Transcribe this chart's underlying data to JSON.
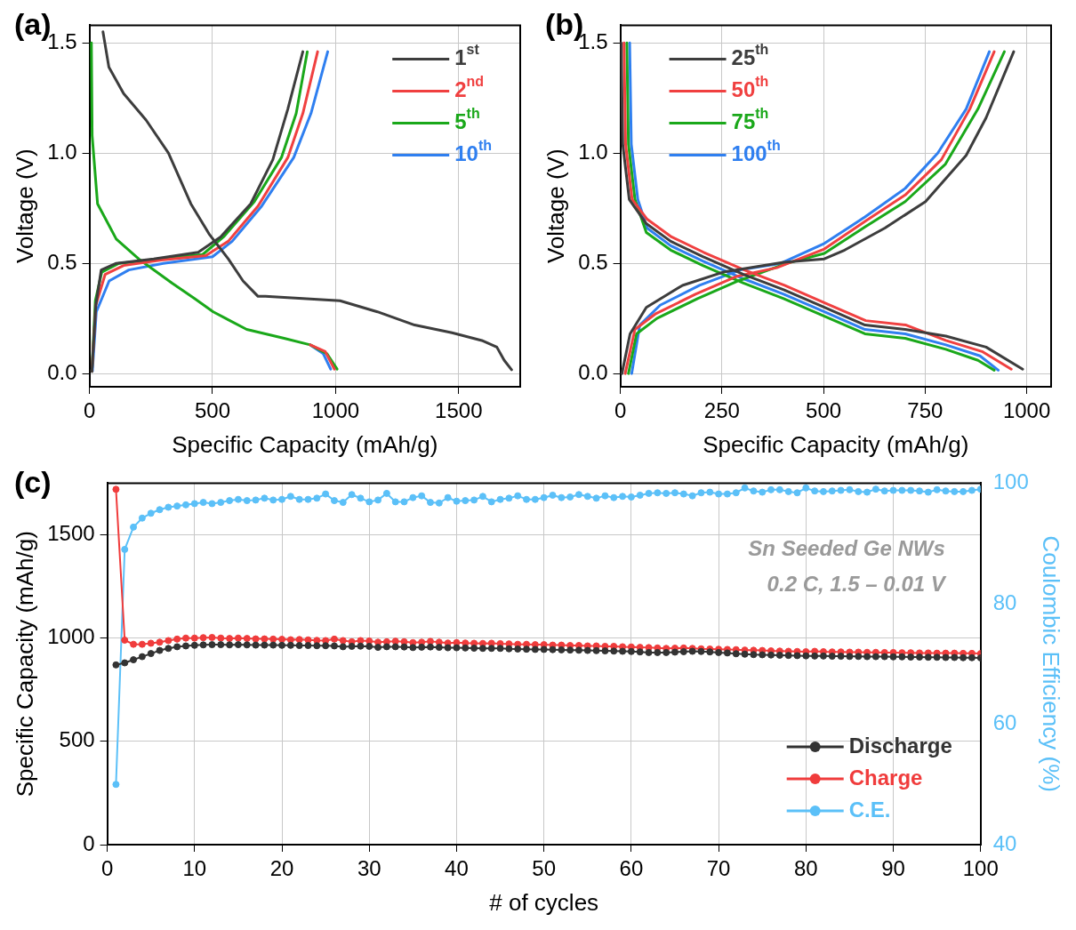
{
  "chart_data": [
    {
      "type": "line",
      "title": "(a)",
      "xlabel": "Specific Capacity (mAh/g)",
      "ylabel": "Voltage (V)",
      "xlim": [
        0,
        1750
      ],
      "xticks": [
        0,
        500,
        1000,
        1500
      ],
      "ylim": [
        -0.06,
        1.58
      ],
      "yticks": [
        {
          "value": 0,
          "label": "0.0"
        },
        {
          "value": 0.5,
          "label": "0.5"
        },
        {
          "value": 1,
          "label": "1.0"
        },
        {
          "value": 1.5,
          "label": "1.5"
        }
      ],
      "grid": true,
      "legend": "top right",
      "series": [
        {
          "name": "1$^{st}$",
          "color": "#3d3d3d",
          "x": [
            55,
            79,
            139,
            230,
            321,
            412,
            488,
            564,
            624,
            685,
            715,
            867,
            1018,
            1170,
            1321,
            1473,
            1594,
            1655,
            1685,
            1715,
            null,
            10,
            26,
            48,
            109,
            261,
            442,
            533,
            655,
            745,
            806,
            867
          ],
          "values": [
            1.55,
            1.39,
            1.27,
            1.15,
            1.0,
            0.77,
            0.63,
            0.52,
            0.42,
            0.35,
            0.35,
            0.34,
            0.33,
            0.28,
            0.22,
            0.185,
            0.15,
            0.12,
            0.06,
            0.017,
            null,
            0.01,
            0.31,
            0.47,
            0.5,
            0.52,
            0.55,
            0.62,
            0.77,
            0.97,
            1.2,
            1.46
          ]
        },
        {
          "name": "2$^{nd}$",
          "color": "#f04040",
          "x": [
            897,
            958,
            995,
            null,
            10,
            26,
            64,
            139,
            291,
            473,
            564,
            685,
            806,
            867,
            927
          ],
          "values": [
            0.13,
            0.1,
            0.02,
            null,
            0.01,
            0.31,
            0.45,
            0.49,
            0.515,
            0.535,
            0.6,
            0.76,
            0.98,
            1.18,
            1.46
          ]
        },
        {
          "name": "5$^{th}$",
          "color": "#1aa81a",
          "x": [
            8,
            11,
            33,
            109,
            200,
            336,
            427,
            503,
            639,
            791,
            897,
            965,
            1006,
            null,
            10,
            24,
            50,
            120,
            280,
            460,
            545,
            670,
            780,
            840,
            885
          ],
          "values": [
            1.5,
            1.08,
            0.77,
            0.61,
            0.52,
            0.41,
            0.34,
            0.28,
            0.2,
            0.16,
            0.13,
            0.09,
            0.02,
            null,
            0.01,
            0.33,
            0.46,
            0.5,
            0.52,
            0.54,
            0.62,
            0.78,
            0.98,
            1.18,
            1.46
          ]
        },
        {
          "name": "10$^{th}$",
          "color": "#2f7ff0",
          "x": [
            897,
            950,
            980,
            null,
            12,
            28,
            80,
            160,
            300,
            500,
            580,
            700,
            830,
            900,
            968
          ],
          "values": [
            0.13,
            0.09,
            0.02,
            null,
            0.01,
            0.28,
            0.42,
            0.47,
            0.5,
            0.53,
            0.6,
            0.76,
            0.98,
            1.18,
            1.46
          ]
        }
      ]
    },
    {
      "type": "line",
      "title": "(b)",
      "xlabel": "Specific Capacity (mAh/g)",
      "ylabel": "Voltage (V)",
      "xlim": [
        0,
        1060
      ],
      "xticks": [
        0,
        250,
        500,
        750,
        1000
      ],
      "ylim": [
        -0.06,
        1.58
      ],
      "yticks": [
        {
          "value": 0,
          "label": "0.0"
        },
        {
          "value": 0.5,
          "label": "0.5"
        },
        {
          "value": 1,
          "label": "1.0"
        },
        {
          "value": 1.5,
          "label": "1.5"
        }
      ],
      "grid": true,
      "legend": "top left",
      "series": [
        {
          "name": "25$^{th}$",
          "color": "#3d3d3d",
          "x": [
            2,
            6,
            22,
            64,
            124,
            203,
            303,
            402,
            502,
            602,
            701,
            801,
            900,
            990,
            null,
            4,
            24,
            64,
            153,
            253,
            402,
            502,
            552,
            651,
            751,
            851,
            900,
            968
          ],
          "values": [
            1.5,
            1.04,
            0.79,
            0.68,
            0.6,
            0.53,
            0.45,
            0.38,
            0.3,
            0.22,
            0.2,
            0.17,
            0.12,
            0.02,
            null,
            0.0,
            0.18,
            0.3,
            0.4,
            0.46,
            0.505,
            0.52,
            0.56,
            0.66,
            0.78,
            0.99,
            1.16,
            1.46
          ]
        },
        {
          "name": "50$^{th}$",
          "color": "#f04040",
          "x": [
            9,
            13,
            29,
            66,
            126,
            205,
            305,
            404,
            504,
            604,
            703,
            801,
            890,
            962,
            null,
            12,
            36,
            86,
            185,
            285,
            385,
            502,
            602,
            701,
            790,
            860,
            920
          ],
          "values": [
            1.5,
            1.04,
            0.79,
            0.7,
            0.62,
            0.55,
            0.47,
            0.4,
            0.32,
            0.24,
            0.22,
            0.15,
            0.1,
            0.02,
            null,
            0.0,
            0.2,
            0.27,
            0.36,
            0.44,
            0.48,
            0.565,
            0.69,
            0.81,
            0.97,
            1.2,
            1.46
          ]
        },
        {
          "name": "75$^{th}$",
          "color": "#1aa81a",
          "x": [
            16,
            20,
            36,
            64,
            124,
            203,
            303,
            402,
            502,
            602,
            701,
            801,
            880,
            920,
            null,
            20,
            40,
            90,
            190,
            290,
            410,
            502,
            602,
            701,
            800,
            880,
            945
          ],
          "values": [
            1.5,
            1.04,
            0.79,
            0.64,
            0.56,
            0.49,
            0.41,
            0.34,
            0.26,
            0.18,
            0.16,
            0.11,
            0.06,
            0.015,
            null,
            0.0,
            0.18,
            0.25,
            0.34,
            0.42,
            0.5,
            0.545,
            0.665,
            0.78,
            0.95,
            1.2,
            1.46
          ]
        },
        {
          "name": "100$^{th}$",
          "color": "#2f7ff0",
          "x": [
            23,
            27,
            43,
            66,
            124,
            203,
            303,
            402,
            502,
            602,
            701,
            801,
            885,
            930,
            null,
            28,
            48,
            98,
            195,
            295,
            395,
            502,
            602,
            701,
            781,
            851,
            908
          ],
          "values": [
            1.5,
            1.04,
            0.79,
            0.66,
            0.58,
            0.51,
            0.43,
            0.36,
            0.28,
            0.2,
            0.18,
            0.13,
            0.08,
            0.015,
            null,
            0.0,
            0.22,
            0.31,
            0.4,
            0.47,
            0.5,
            0.59,
            0.71,
            0.84,
            1.0,
            1.2,
            1.46
          ]
        }
      ]
    },
    {
      "type": "line",
      "title": "(c)",
      "xlabel": "# of cycles",
      "ylabel": "Specific Capacity (mAh/g)",
      "y2label": "Coulombic Efficiency (%)",
      "xlim": [
        0,
        100
      ],
      "xticks": [
        0,
        10,
        20,
        30,
        40,
        50,
        60,
        70,
        80,
        90,
        100
      ],
      "ylim": [
        0,
        1750
      ],
      "yticks": [
        0,
        500,
        1000,
        1500
      ],
      "y2lim": [
        40,
        100
      ],
      "y2ticks": [
        40,
        60,
        80,
        100
      ],
      "grid": true,
      "legend": "bottom right",
      "marker": "circle",
      "x": [
        1,
        2,
        3,
        4,
        5,
        6,
        7,
        8,
        9,
        10,
        11,
        12,
        13,
        14,
        15,
        16,
        17,
        18,
        19,
        20,
        21,
        22,
        23,
        24,
        25,
        26,
        27,
        28,
        29,
        30,
        31,
        32,
        33,
        34,
        35,
        36,
        37,
        38,
        39,
        40,
        41,
        42,
        43,
        44,
        45,
        46,
        47,
        48,
        49,
        50,
        51,
        52,
        53,
        54,
        55,
        56,
        57,
        58,
        59,
        60,
        61,
        62,
        63,
        64,
        65,
        66,
        67,
        68,
        69,
        70,
        71,
        72,
        73,
        74,
        75,
        76,
        77,
        78,
        79,
        80,
        81,
        82,
        83,
        84,
        85,
        86,
        87,
        88,
        89,
        90,
        91,
        92,
        93,
        94,
        95,
        96,
        97,
        98,
        99,
        100
      ],
      "annotations": [
        "Sn Seeded Ge NWs",
        "0.2 C, 1.5 – 0.01 V"
      ],
      "series": [
        {
          "name": "Discharge",
          "color": "#333333",
          "values": [
            870,
            880,
            895,
            910,
            925,
            940,
            950,
            958,
            962,
            965,
            967,
            968,
            968,
            967,
            968,
            967,
            966,
            966,
            966,
            965,
            965,
            964,
            964,
            963,
            963,
            962,
            958,
            960,
            961,
            960,
            955,
            958,
            958,
            957,
            954,
            956,
            957,
            955,
            953,
            953,
            952,
            951,
            950,
            950,
            950,
            948,
            947,
            946,
            945,
            945,
            944,
            943,
            942,
            941,
            940,
            939,
            938,
            937,
            936,
            935,
            933,
            930,
            930,
            930,
            932,
            934,
            936,
            935,
            933,
            930,
            928,
            924,
            922,
            920,
            919,
            918,
            917,
            916,
            915,
            914,
            913,
            913,
            912,
            912,
            911,
            911,
            910,
            910,
            910,
            909,
            909,
            908,
            908,
            907,
            907,
            906,
            906,
            905,
            905,
            904
          ]
        },
        {
          "name": "Charge",
          "color": "#f03c3c",
          "values": [
            1720,
            990,
            970,
            970,
            975,
            980,
            988,
            995,
            1000,
            1000,
            1002,
            1003,
            1000,
            998,
            1000,
            998,
            996,
            996,
            995,
            994,
            992,
            993,
            991,
            989,
            988,
            995,
            988,
            982,
            988,
            986,
            980,
            982,
            985,
            982,
            978,
            980,
            984,
            980,
            976,
            978,
            976,
            975,
            974,
            975,
            973,
            972,
            970,
            970,
            968,
            968,
            966,
            966,
            964,
            964,
            962,
            962,
            960,
            960,
            958,
            957,
            955,
            954,
            952,
            950,
            951,
            952,
            950,
            948,
            947,
            946,
            945,
            944,
            942,
            941,
            940,
            938,
            937,
            936,
            935,
            934,
            936,
            934,
            933,
            933,
            932,
            932,
            931,
            931,
            930,
            930,
            929,
            929,
            928,
            928,
            927,
            927,
            927,
            926,
            926,
            925
          ]
        },
        {
          "name": "C.E.",
          "color": "#5bc0f8",
          "axis": "y2",
          "values": [
            50,
            89,
            92.7,
            94.2,
            95,
            95.6,
            96,
            96.2,
            96.4,
            96.6,
            96.8,
            96.6,
            96.8,
            97.1,
            97.3,
            97.1,
            97.2,
            97.5,
            97.2,
            97.3,
            97.8,
            97.3,
            97.3,
            97.5,
            98.2,
            97.1,
            96.8,
            98.1,
            97.5,
            96.9,
            97.2,
            98.3,
            96.9,
            96.9,
            97.6,
            97.9,
            96.8,
            96.7,
            97.6,
            97.0,
            97.1,
            97.2,
            97.8,
            96.9,
            97.3,
            97.5,
            97.9,
            97.3,
            97.3,
            97.6,
            98,
            97.6,
            97.7,
            98.1,
            97.8,
            97.5,
            97.9,
            97.6,
            97.8,
            97.7,
            98.0,
            98.3,
            98.4,
            98.3,
            98.4,
            98.2,
            97.9,
            98.4,
            98.5,
            98.2,
            98.2,
            98.4,
            99.2,
            98.7,
            98.5,
            98.9,
            98.9,
            98.6,
            98.4,
            99.2,
            98.7,
            98.6,
            98.7,
            98.8,
            98.9,
            98.6,
            98.5,
            99.0,
            98.7,
            98.8,
            98.8,
            98.8,
            98.7,
            98.5,
            98.9,
            98.7,
            98.6,
            98.6,
            98.8,
            99.0
          ]
        }
      ]
    }
  ]
}
